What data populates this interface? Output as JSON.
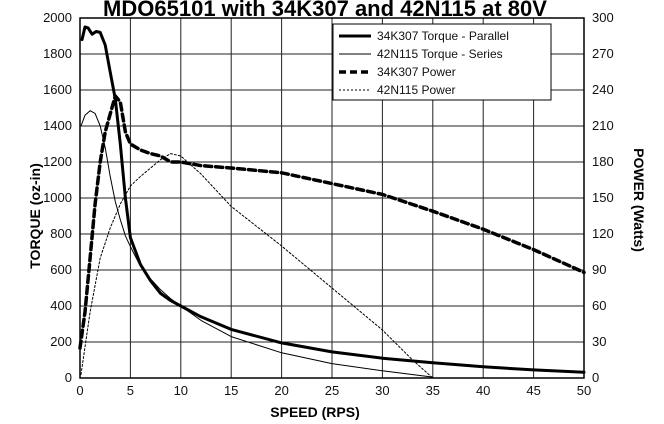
{
  "chart_data": {
    "type": "line",
    "title": "MDO65101 with 34K307 and 42N115 at 80V",
    "xlabel": "SPEED (RPS)",
    "ylabel": "TORQUE (oz-in)",
    "y2label": "POWER (Watts)",
    "xlim": [
      0,
      50
    ],
    "ylim": [
      0,
      2000
    ],
    "y2lim": [
      0,
      300
    ],
    "xticks": [
      0,
      5,
      10,
      15,
      20,
      25,
      30,
      35,
      40,
      45,
      50
    ],
    "yticks": [
      0,
      200,
      400,
      600,
      800,
      1000,
      1200,
      1400,
      1600,
      1800,
      2000
    ],
    "y2ticks": [
      0,
      30,
      60,
      90,
      120,
      150,
      180,
      210,
      240,
      270,
      300
    ],
    "grid": true,
    "legend_position": "top-right",
    "series": [
      {
        "name": "34K307 Torque - Parallel",
        "axis": "left",
        "style": "thick-solid",
        "x": [
          0.2,
          0.5,
          0.8,
          1.2,
          1.6,
          2.0,
          2.5,
          3.0,
          3.5,
          4.0,
          4.5,
          5.0,
          6.0,
          7.0,
          8.0,
          9.0,
          10.0,
          12.0,
          15.0,
          20.0,
          25.0,
          30.0,
          35.0,
          40.0,
          45.0,
          50.0
        ],
        "y": [
          1880,
          1950,
          1945,
          1910,
          1925,
          1920,
          1850,
          1700,
          1550,
          1300,
          1000,
          780,
          630,
          540,
          470,
          430,
          400,
          340,
          270,
          195,
          145,
          110,
          85,
          62,
          45,
          32
        ]
      },
      {
        "name": "42N115 Torque - Series",
        "axis": "left",
        "style": "thin-solid",
        "x": [
          0.1,
          0.5,
          1.0,
          1.5,
          2.0,
          2.5,
          3.0,
          3.5,
          4.0,
          4.5,
          5.0,
          6.0,
          7.0,
          8.0,
          9.0,
          10.0,
          12.0,
          15.0,
          20.0,
          25.0,
          30.0,
          35.0
        ],
        "y": [
          1400,
          1460,
          1485,
          1470,
          1400,
          1280,
          1120,
          980,
          880,
          790,
          730,
          620,
          550,
          490,
          440,
          400,
          320,
          230,
          140,
          80,
          40,
          5
        ]
      },
      {
        "name": "34K307 Power",
        "axis": "right",
        "style": "thick-dashed",
        "x": [
          0,
          0.5,
          1.0,
          1.5,
          2.0,
          2.5,
          3.0,
          3.5,
          4.0,
          4.5,
          5.0,
          6.0,
          7.0,
          8.0,
          9.0,
          10.0,
          12.0,
          15.0,
          20.0,
          25.0,
          30.0,
          35.0,
          40.0,
          45.0,
          50.0
        ],
        "y": [
          25,
          55,
          100,
          145,
          180,
          205,
          220,
          235,
          230,
          205,
          195,
          190,
          187,
          185,
          180,
          180,
          177,
          175,
          171,
          162,
          153,
          139,
          124,
          107,
          88
        ]
      },
      {
        "name": "42N115 Power",
        "axis": "right",
        "style": "thin-dotted",
        "x": [
          0.1,
          1.0,
          2.0,
          3.0,
          4.0,
          5.0,
          6.0,
          7.0,
          8.0,
          9.0,
          10.0,
          12.0,
          15.0,
          20.0,
          25.0,
          30.0,
          33.0,
          35.0
        ],
        "y": [
          3,
          55,
          100,
          125,
          145,
          160,
          168,
          175,
          182,
          187,
          185,
          170,
          143,
          110,
          75,
          40,
          15,
          0
        ]
      }
    ]
  }
}
